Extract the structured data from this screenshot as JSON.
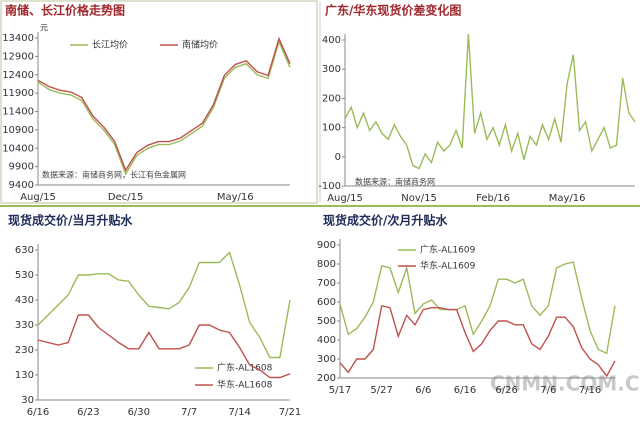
{
  "chart_data": [
    {
      "type": "line",
      "title": "南储、长江价格走势图",
      "y_label": "元",
      "note": "数据来源：南储商务网，长江有色金属网",
      "categories": [
        "Aug/15",
        null,
        null,
        null,
        null,
        null,
        null,
        null,
        "Dec/15",
        null,
        null,
        null,
        null,
        null,
        null,
        null,
        null,
        null,
        "May/16",
        null,
        null,
        null,
        null,
        null
      ],
      "series": [
        {
          "name": "长江均价",
          "color": "#9bbb59",
          "values": [
            12200,
            12000,
            11900,
            11850,
            11700,
            11200,
            10900,
            10500,
            9700,
            10200,
            10400,
            10500,
            10500,
            10600,
            10800,
            11000,
            11500,
            12300,
            12600,
            12700,
            12400,
            12300,
            13300,
            12600
          ]
        },
        {
          "name": "南储均价",
          "color": "#c0504d",
          "values": [
            12250,
            12080,
            11980,
            11930,
            11780,
            11280,
            10980,
            10580,
            9800,
            10280,
            10480,
            10580,
            10580,
            10680,
            10880,
            11080,
            11580,
            12380,
            12680,
            12780,
            12480,
            12380,
            13380,
            12700
          ]
        }
      ],
      "ylim": [
        9400,
        13400
      ],
      "yticks": [
        9400,
        9900,
        10400,
        10900,
        11400,
        11900,
        12400,
        12900,
        13400
      ],
      "legend": "upper left",
      "grid": false
    },
    {
      "type": "line",
      "title": "广东/华东现货价差变化图",
      "note": "数据来源：南储商务网",
      "color": "#9bbb59",
      "categories": [
        "Aug/15",
        null,
        null,
        null,
        null,
        null,
        null,
        null,
        null,
        null,
        null,
        null,
        "Nov/15",
        null,
        null,
        null,
        null,
        null,
        null,
        null,
        null,
        null,
        null,
        null,
        "Feb/16",
        null,
        null,
        null,
        null,
        null,
        null,
        null,
        null,
        null,
        null,
        null,
        "May/16",
        null,
        null,
        null,
        null,
        null,
        null,
        null,
        null,
        null,
        null,
        null
      ],
      "values": [
        130,
        170,
        100,
        150,
        90,
        120,
        80,
        60,
        110,
        70,
        40,
        -30,
        -40,
        10,
        -20,
        50,
        20,
        40,
        90,
        30,
        420,
        80,
        150,
        60,
        100,
        40,
        110,
        20,
        80,
        -10,
        70,
        40,
        110,
        60,
        130,
        50,
        250,
        350,
        90,
        120,
        20,
        60,
        100,
        30,
        40,
        270,
        150,
        120
      ],
      "ylim": [
        -100,
        400
      ],
      "yticks": [
        -100,
        0,
        100,
        200,
        300,
        400
      ],
      "grid": false
    },
    {
      "type": "line",
      "title": "现货成交价/当月升贴水",
      "categories": [
        "6/16",
        null,
        null,
        null,
        null,
        "6/23",
        null,
        null,
        null,
        null,
        "6/30",
        null,
        null,
        null,
        null,
        "7/7",
        null,
        null,
        null,
        null,
        "7/14",
        null,
        null,
        null,
        null,
        "7/21"
      ],
      "series": [
        {
          "name": "广东-AL1608",
          "color": "#9bbb59",
          "values": [
            330,
            370,
            410,
            450,
            530,
            530,
            535,
            535,
            510,
            505,
            450,
            405,
            400,
            395,
            420,
            480,
            580,
            580,
            580,
            620,
            490,
            340,
            280,
            200,
            200,
            430
          ]
        },
        {
          "name": "华东-AL1608",
          "color": "#c0504d",
          "values": [
            270,
            260,
            250,
            260,
            370,
            370,
            320,
            290,
            260,
            235,
            235,
            300,
            235,
            235,
            235,
            250,
            330,
            330,
            310,
            300,
            240,
            170,
            150,
            120,
            120,
            135
          ]
        }
      ],
      "ylim": [
        30,
        630
      ],
      "yticks": [
        30,
        130,
        230,
        330,
        430,
        530,
        630
      ],
      "legend": "lower right",
      "grid": false
    },
    {
      "type": "line",
      "title": "现货成交价/次月升贴水",
      "categories": [
        "5/17",
        null,
        null,
        null,
        null,
        "5/27",
        null,
        null,
        null,
        null,
        "6/6",
        null,
        null,
        null,
        null,
        "6/16",
        null,
        null,
        null,
        null,
        "6/26",
        null,
        null,
        null,
        null,
        "7/6",
        null,
        null,
        null,
        null,
        "7/16",
        null,
        null,
        null
      ],
      "series": [
        {
          "name": "广东-AL1609",
          "color": "#9bbb59",
          "values": [
            590,
            430,
            460,
            520,
            600,
            790,
            780,
            650,
            780,
            540,
            590,
            610,
            560,
            560,
            560,
            580,
            430,
            500,
            580,
            720,
            720,
            700,
            720,
            580,
            530,
            580,
            780,
            800,
            810,
            620,
            450,
            350,
            330,
            580
          ]
        },
        {
          "name": "华东-AL1609",
          "color": "#c0504d",
          "values": [
            280,
            230,
            300,
            300,
            350,
            580,
            570,
            420,
            530,
            480,
            560,
            570,
            570,
            560,
            560,
            440,
            340,
            380,
            450,
            500,
            500,
            480,
            480,
            380,
            350,
            420,
            520,
            520,
            470,
            360,
            300,
            270,
            210,
            290
          ]
        }
      ],
      "ylim": [
        200,
        900
      ],
      "yticks": [
        200,
        300,
        400,
        500,
        600,
        700,
        800,
        900
      ],
      "legend": "upper center",
      "grid": false
    }
  ],
  "watermark": "CNMN.COM.CN"
}
